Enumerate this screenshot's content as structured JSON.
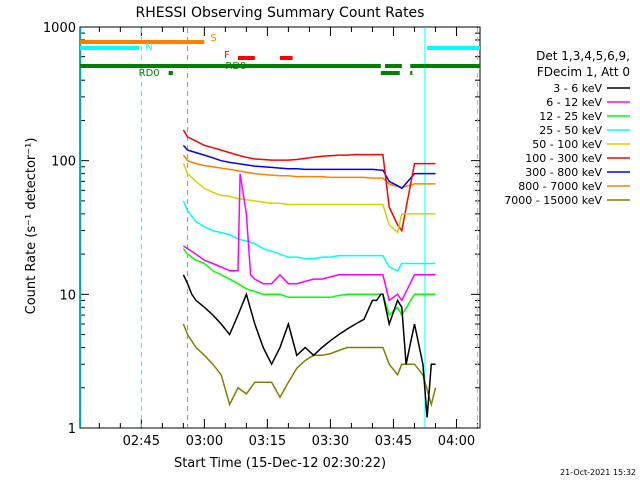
{
  "chart_data": {
    "type": "line",
    "title": "RHESSI Observing Summary Count Rates",
    "xlabel": "Start Time (15-Dec-12 02:30:22)",
    "ylabel": "Count Rate (s⁻¹ detector⁻¹)",
    "yscale": "log",
    "ylim": [
      1,
      1000
    ],
    "xlim_minutes_after_0230": [
      0.4,
      95.6
    ],
    "x_ticks": [
      {
        "label": "02:45",
        "t": 15
      },
      {
        "label": "03:00",
        "t": 30
      },
      {
        "label": "03:15",
        "t": 45
      },
      {
        "label": "03:30",
        "t": 60
      },
      {
        "label": "03:45",
        "t": 75
      },
      {
        "label": "04:00",
        "t": 90
      }
    ],
    "y_ticks": [
      {
        "label": "1",
        "v": 1
      },
      {
        "label": "10",
        "v": 10
      },
      {
        "label": "100",
        "v": 100
      },
      {
        "label": "1000",
        "v": 1000
      }
    ],
    "legend": {
      "placement": "right",
      "header": [
        "Det 1,3,4,5,6,9,",
        "FDecim 1, Att 0"
      ]
    },
    "series": [
      {
        "name": "3 - 6 keV",
        "color": "#000000",
        "x": [
          25,
          26,
          27,
          28,
          30,
          32,
          34,
          36,
          38,
          40,
          42,
          44,
          46,
          48,
          50,
          52,
          54,
          56,
          58,
          60,
          62,
          64,
          66,
          68,
          70,
          71,
          72,
          72.5,
          74,
          76,
          77,
          78,
          80,
          82,
          83,
          84,
          85
        ],
        "y": [
          14,
          12,
          10,
          9,
          8,
          7,
          6,
          5,
          7,
          10,
          6,
          4,
          3,
          4,
          6,
          3.5,
          4,
          3.5,
          4,
          4.5,
          5,
          5.5,
          6,
          6.5,
          9,
          9,
          10,
          10,
          6,
          9,
          8,
          3,
          6,
          3,
          1.2,
          3,
          3
        ]
      },
      {
        "name": "6 - 12 keV",
        "color": "#ff00ff",
        "x": [
          25,
          26,
          28,
          30,
          32,
          34,
          36,
          38,
          38.5,
          40,
          41,
          42,
          44,
          46,
          48,
          50,
          52,
          54,
          56,
          58,
          60,
          62,
          64,
          66,
          68,
          70,
          72,
          72.5,
          74,
          76,
          77,
          80,
          82,
          84,
          85
        ],
        "y": [
          23,
          22,
          20,
          18,
          17,
          16,
          15,
          15,
          80,
          40,
          14,
          13,
          12,
          12,
          14,
          12,
          12,
          12.5,
          13,
          13,
          13.5,
          14,
          14,
          14,
          14,
          14,
          14,
          14,
          9,
          10,
          9,
          14,
          14,
          14,
          14
        ]
      },
      {
        "name": "12 - 25 keV",
        "color": "#00ff00",
        "x": [
          25,
          26,
          28,
          30,
          32,
          34,
          36,
          38,
          40,
          42,
          44,
          46,
          48,
          50,
          52,
          54,
          56,
          58,
          60,
          62,
          64,
          66,
          68,
          70,
          72,
          72.5,
          74,
          76,
          77,
          80,
          82,
          84,
          85
        ],
        "y": [
          22,
          20,
          18,
          17,
          15,
          14,
          13,
          12,
          11,
          10.5,
          10,
          10,
          10,
          9.5,
          9.5,
          9.5,
          9.5,
          9.5,
          9.5,
          9.8,
          10,
          10,
          10,
          10,
          10,
          10,
          7,
          8,
          7,
          10,
          10,
          10,
          10
        ]
      },
      {
        "name": "25 - 50 keV",
        "color": "#00ffff",
        "x": [
          25,
          26,
          28,
          30,
          32,
          34,
          36,
          38,
          40,
          42,
          44,
          46,
          48,
          50,
          52,
          54,
          56,
          58,
          60,
          62,
          64,
          66,
          68,
          70,
          72,
          72.5,
          74,
          76,
          77,
          80,
          82,
          84,
          85
        ],
        "y": [
          50,
          42,
          35,
          32,
          30,
          29,
          28,
          26,
          25,
          24,
          22,
          21,
          20,
          19,
          19,
          18.5,
          18.5,
          19,
          19,
          19.5,
          19.5,
          19.5,
          19.5,
          19.5,
          19.5,
          19.5,
          16,
          15,
          17,
          17,
          17,
          17,
          17
        ]
      },
      {
        "name": "50 - 100 keV",
        "color": "#d4d400",
        "x": [
          25,
          26,
          28,
          30,
          32,
          34,
          36,
          38,
          40,
          42,
          44,
          46,
          48,
          50,
          52,
          54,
          56,
          58,
          60,
          62,
          64,
          66,
          68,
          70,
          72,
          72.5,
          74,
          76,
          77,
          80,
          82,
          84,
          85
        ],
        "y": [
          95,
          80,
          70,
          62,
          58,
          55,
          54,
          52,
          51,
          50,
          49,
          48,
          48,
          47,
          47,
          47,
          47,
          47,
          47,
          47,
          47,
          47,
          47,
          47,
          47,
          47,
          33,
          29,
          40,
          40,
          40,
          40,
          40
        ]
      },
      {
        "name": "100 - 300 keV",
        "color": "#ff0000",
        "x": [
          25,
          26,
          28,
          30,
          32,
          34,
          36,
          38,
          40,
          42,
          44,
          46,
          48,
          50,
          52,
          54,
          56,
          58,
          60,
          62,
          64,
          66,
          68,
          70,
          72,
          72.5,
          74,
          76,
          77,
          80,
          82,
          84,
          85
        ],
        "y": [
          170,
          150,
          140,
          130,
          125,
          120,
          115,
          110,
          106,
          103,
          102,
          101,
          101,
          101,
          102,
          104,
          106,
          108,
          109,
          110,
          110,
          111,
          111,
          111,
          111,
          111,
          45,
          33,
          30,
          95,
          95,
          95,
          95
        ]
      },
      {
        "name": "300 - 800 keV",
        "color": "#0000ff",
        "x": [
          25,
          26,
          28,
          30,
          32,
          34,
          36,
          38,
          40,
          42,
          44,
          46,
          48,
          50,
          52,
          54,
          56,
          58,
          60,
          62,
          64,
          66,
          68,
          70,
          72,
          72.5,
          74,
          76,
          77,
          80,
          82,
          84,
          85
        ],
        "y": [
          130,
          120,
          115,
          110,
          105,
          100,
          97,
          95,
          93,
          91,
          90,
          89,
          88,
          87,
          87,
          86,
          86,
          86,
          86,
          86,
          86,
          86,
          86,
          86,
          85,
          85,
          70,
          65,
          62,
          80,
          80,
          80,
          80
        ]
      },
      {
        "name": "800 - 7000 keV",
        "color": "#ff8000",
        "x": [
          25,
          26,
          28,
          30,
          32,
          34,
          36,
          38,
          40,
          42,
          44,
          46,
          48,
          50,
          52,
          54,
          56,
          58,
          60,
          62,
          64,
          66,
          68,
          70,
          72,
          72.5,
          74,
          76,
          77,
          80,
          82,
          84,
          85
        ],
        "y": [
          110,
          100,
          95,
          92,
          90,
          88,
          86,
          84,
          82,
          80,
          79,
          78,
          77,
          77,
          76,
          76,
          76,
          76,
          75,
          75,
          75,
          75,
          75,
          74,
          74,
          74,
          67,
          64,
          63,
          67,
          67,
          67,
          67
        ]
      },
      {
        "name": "7000 - 15000 keV",
        "color": "#808000",
        "x": [
          25,
          26,
          28,
          30,
          32,
          34,
          36,
          38,
          40,
          42,
          44,
          46,
          48,
          50,
          52,
          54,
          56,
          58,
          60,
          62,
          64,
          66,
          68,
          70,
          72,
          72.5,
          74,
          76,
          77,
          80,
          82,
          84,
          85
        ],
        "y": [
          6,
          5,
          4,
          3.5,
          3,
          2.5,
          1.5,
          2,
          1.8,
          2.2,
          2.2,
          2.2,
          1.7,
          2.2,
          2.8,
          3.2,
          3.5,
          3.5,
          3.6,
          3.8,
          4,
          4,
          4,
          4,
          4,
          4,
          3,
          2.5,
          3,
          3,
          2.5,
          1.5,
          2
        ]
      }
    ],
    "flag_bars": [
      {
        "label": "S",
        "label_color": "#ff8000",
        "color": "#ff8000",
        "segments": [
          [
            0.4,
            30
          ]
        ]
      },
      {
        "label": "N",
        "label_color": "#00ffff",
        "color": "#00ffff",
        "segments": [
          [
            0.4,
            14.5
          ],
          [
            83,
            95.6
          ]
        ]
      },
      {
        "label": "F",
        "label_color": "#ff0000",
        "color": "#ff0000",
        "segments": [
          [
            38,
            42
          ],
          [
            48,
            51
          ]
        ]
      },
      {
        "label": "RD0",
        "label_color": "#008000",
        "color": "#008000",
        "segments": [
          [
            0.4,
            72
          ],
          [
            73,
            77
          ],
          [
            79,
            95.6
          ]
        ]
      },
      {
        "label": "RD0",
        "label_color": "#008000",
        "color": "#008000",
        "segments": [
          [
            21.5,
            22.5
          ],
          [
            72,
            76.5
          ],
          [
            79,
            79.5
          ]
        ]
      }
    ],
    "vertical_markers": [
      {
        "t": 15,
        "color": "#00ffff",
        "style": "dashed"
      },
      {
        "t": 26,
        "color": "#ff8000",
        "style": "dashed"
      },
      {
        "t": 82.5,
        "color": "#00ffff",
        "style": "solid"
      },
      {
        "t": 95,
        "color": "#00ffff",
        "style": "dashed"
      },
      {
        "t": 0.6,
        "color": "#00ffff",
        "style": "solid"
      }
    ]
  },
  "footer": {
    "date_stamp": "21-Oct-2021 15:32"
  }
}
